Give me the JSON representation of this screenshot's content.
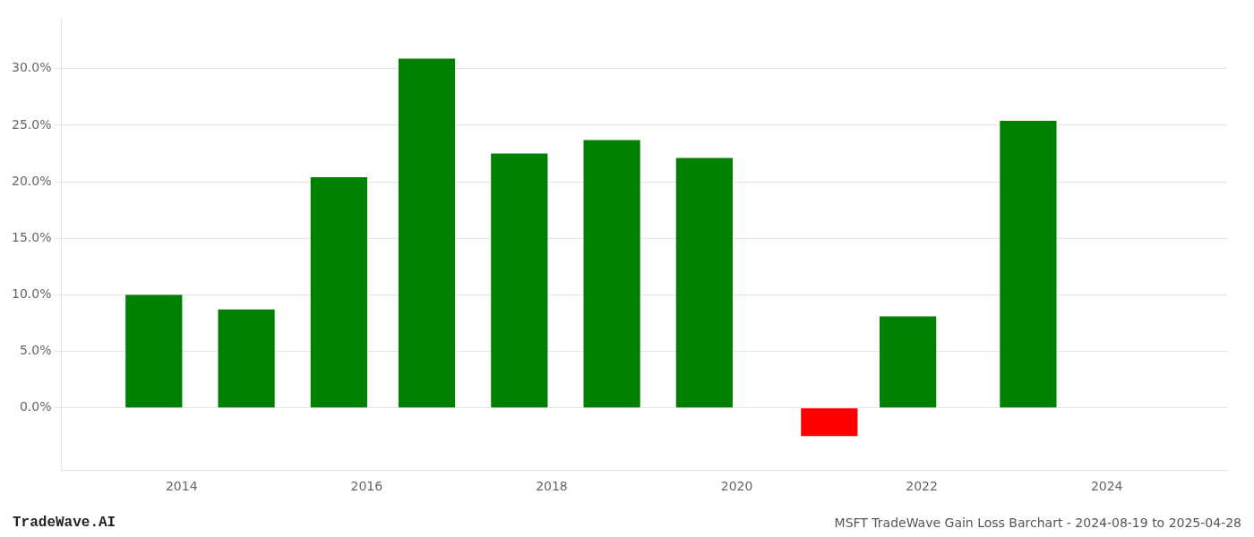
{
  "chart_data": {
    "type": "bar",
    "title": "MSFT TradeWave Gain Loss Barchart - 2024-08-19 to 2025-04-28",
    "annotations": [
      {
        "text": "TradeWave.AI"
      }
    ],
    "x": [
      2013.7,
      2014.7,
      2015.7,
      2016.65,
      2017.65,
      2018.65,
      2019.65,
      2021.0,
      2021.85,
      2023.15
    ],
    "values": [
      0.1,
      0.087,
      0.204,
      0.309,
      0.225,
      0.237,
      0.221,
      -0.025,
      0.081,
      0.254
    ],
    "colors": [
      "#008000",
      "#008000",
      "#008000",
      "#008000",
      "#008000",
      "#008000",
      "#008000",
      "#ff0000",
      "#008000",
      "#008000"
    ],
    "xlim": [
      2012.7,
      2025.3
    ],
    "xticks": [
      2014,
      2016,
      2018,
      2020,
      2022,
      2024
    ],
    "ylim": [
      -0.055,
      0.345
    ],
    "yticks": [
      {
        "value": 0.0,
        "label": "0.0%"
      },
      {
        "value": 0.05,
        "label": "5.0%"
      },
      {
        "value": 0.1,
        "label": "10.0%"
      },
      {
        "value": 0.15,
        "label": "15.0%"
      },
      {
        "value": 0.2,
        "label": "20.0%"
      },
      {
        "value": 0.25,
        "label": "25.0%"
      },
      {
        "value": 0.3,
        "label": "30.0%"
      }
    ],
    "grid": "y"
  }
}
